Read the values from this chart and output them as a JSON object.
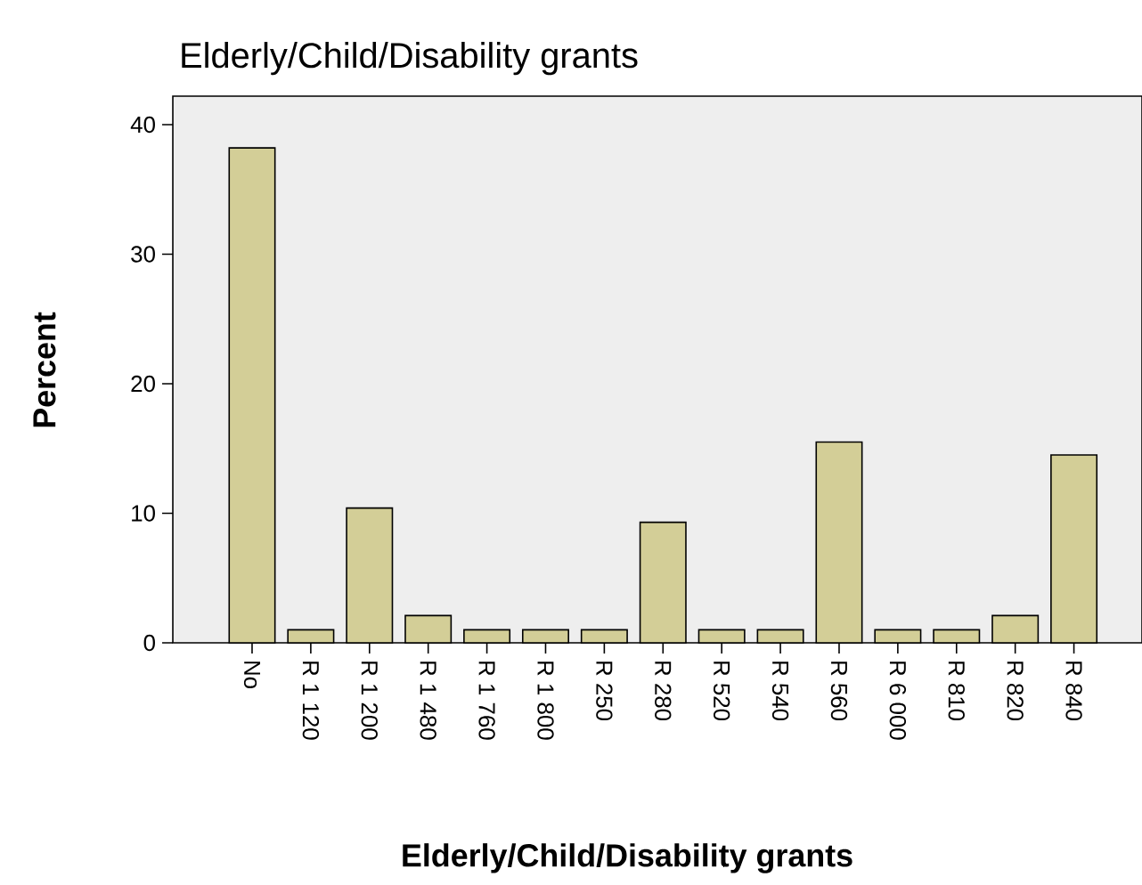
{
  "chart_data": {
    "type": "bar",
    "title": "Elderly/Child/Disability grants",
    "xlabel": "Elderly/Child/Disability grants",
    "ylabel": "Percent",
    "categories": [
      "No",
      "R 1 120",
      "R 1 200",
      "R 1 480",
      "R 1 760",
      "R 1 800",
      "R 250",
      "R 280",
      "R 520",
      "R 540",
      "R 560",
      "R 6 000",
      "R 810",
      "R 820",
      "R 840"
    ],
    "values": [
      38.2,
      1.0,
      10.4,
      2.1,
      1.0,
      1.0,
      1.0,
      9.3,
      1.0,
      1.0,
      15.5,
      1.0,
      1.0,
      2.1,
      14.5
    ],
    "color": "#d3ce97",
    "ylim": [
      0,
      42.2
    ],
    "yticks": [
      0,
      10,
      20,
      30,
      40
    ]
  }
}
